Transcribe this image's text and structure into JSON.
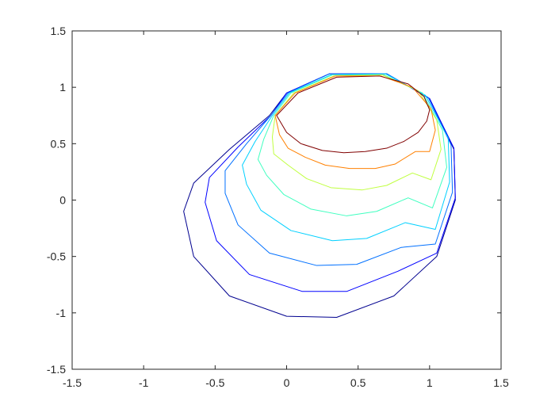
{
  "chart_data": {
    "type": "line",
    "xlim": [
      -1.5,
      1.5
    ],
    "ylim": [
      -1.5,
      1.5
    ],
    "xticks": [
      -1.5,
      -1,
      -0.5,
      0,
      0.5,
      1,
      1.5
    ],
    "yticks": [
      -1.5,
      -1,
      -0.5,
      0,
      0.5,
      1,
      1.5
    ],
    "closed": true,
    "series": [
      {
        "color": "#00008f",
        "x": [
          -0.12,
          -0.4,
          -0.65,
          -0.72,
          -0.65,
          -0.4,
          0.0,
          0.35,
          0.75,
          1.05,
          1.18,
          1.17,
          1.0,
          0.7,
          0.3,
          0.0
        ],
        "y": [
          0.75,
          0.45,
          0.15,
          -0.1,
          -0.5,
          -0.85,
          -1.03,
          -1.04,
          -0.85,
          -0.5,
          0.0,
          0.45,
          0.9,
          1.12,
          1.12,
          0.95
        ]
      },
      {
        "color": "#0000ff",
        "x": [
          -0.11,
          -0.34,
          -0.54,
          -0.57,
          -0.49,
          -0.26,
          0.11,
          0.42,
          0.78,
          1.05,
          1.18,
          1.17,
          1.0,
          0.7,
          0.3,
          0.0
        ],
        "y": [
          0.75,
          0.47,
          0.2,
          -0.02,
          -0.36,
          -0.66,
          -0.81,
          -0.81,
          -0.63,
          -0.47,
          0.02,
          0.46,
          0.9,
          1.12,
          1.12,
          0.95
        ]
      },
      {
        "color": "#0070ff",
        "x": [
          -0.11,
          -0.28,
          -0.43,
          -0.43,
          -0.34,
          -0.12,
          0.21,
          0.49,
          0.8,
          1.04,
          1.16,
          1.15,
          0.99,
          0.7,
          0.3,
          0.01
        ],
        "y": [
          0.75,
          0.5,
          0.26,
          0.06,
          -0.22,
          -0.47,
          -0.58,
          -0.57,
          -0.42,
          -0.39,
          0.07,
          0.49,
          0.91,
          1.12,
          1.12,
          0.95
        ]
      },
      {
        "color": "#00d0ff",
        "x": [
          -0.1,
          -0.22,
          -0.31,
          -0.28,
          -0.18,
          0.03,
          0.32,
          0.56,
          0.83,
          1.04,
          1.14,
          1.13,
          0.97,
          0.69,
          0.31,
          0.02
        ],
        "y": [
          0.75,
          0.52,
          0.31,
          0.14,
          -0.09,
          -0.27,
          -0.36,
          -0.34,
          -0.2,
          -0.26,
          0.16,
          0.55,
          0.93,
          1.12,
          1.11,
          0.95
        ]
      },
      {
        "color": "#40ffc0",
        "x": [
          -0.09,
          -0.16,
          -0.2,
          -0.14,
          -0.02,
          0.17,
          0.42,
          0.63,
          0.85,
          1.02,
          1.12,
          1.09,
          0.95,
          0.68,
          0.32,
          0.03
        ],
        "y": [
          0.75,
          0.54,
          0.36,
          0.22,
          0.05,
          -0.08,
          -0.14,
          -0.1,
          0.02,
          -0.07,
          0.29,
          0.62,
          0.95,
          1.11,
          1.11,
          0.95
        ]
      },
      {
        "color": "#c0ff40",
        "x": [
          -0.08,
          -0.1,
          -0.09,
          0.01,
          0.14,
          0.31,
          0.53,
          0.7,
          0.88,
          1.01,
          1.08,
          1.05,
          0.92,
          0.67,
          0.33,
          0.05
        ],
        "y": [
          0.75,
          0.56,
          0.41,
          0.31,
          0.19,
          0.11,
          0.09,
          0.13,
          0.24,
          0.18,
          0.45,
          0.71,
          0.97,
          1.11,
          1.1,
          0.95
        ]
      },
      {
        "color": "#ff8000",
        "x": [
          -0.08,
          -0.05,
          0.01,
          0.13,
          0.27,
          0.44,
          0.62,
          0.76,
          0.9,
          1.0,
          1.04,
          1.01,
          0.88,
          0.66,
          0.34,
          0.06
        ],
        "y": [
          0.75,
          0.58,
          0.46,
          0.38,
          0.31,
          0.28,
          0.28,
          0.32,
          0.43,
          0.43,
          0.62,
          0.81,
          1.0,
          1.1,
          1.1,
          0.95
        ]
      },
      {
        "color": "#800000",
        "x": [
          -0.07,
          0.0,
          0.1,
          0.25,
          0.4,
          0.55,
          0.7,
          0.82,
          0.92,
          0.98,
          1.0,
          0.96,
          0.85,
          0.65,
          0.35,
          0.08
        ],
        "y": [
          0.75,
          0.6,
          0.5,
          0.44,
          0.42,
          0.43,
          0.46,
          0.52,
          0.6,
          0.7,
          0.8,
          0.92,
          1.03,
          1.1,
          1.09,
          0.95
        ]
      }
    ]
  }
}
